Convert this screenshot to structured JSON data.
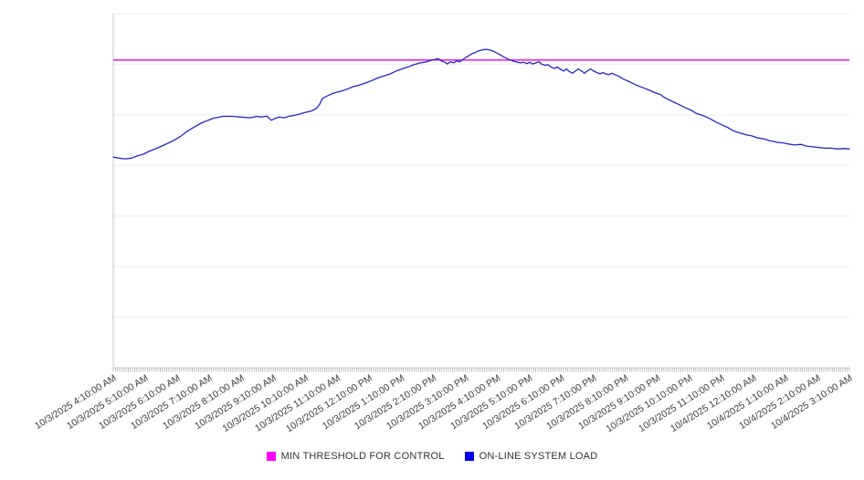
{
  "legend": {
    "items": [
      {
        "label": "MIN THRESHOLD FOR CONTROL",
        "color": "#FF00FF"
      },
      {
        "label": "ON-LINE SYSTEM LOAD",
        "color": "#0000EE"
      }
    ]
  },
  "chart_data": {
    "type": "line",
    "x_labels": [
      "10/3/2025 4:10:00 AM",
      "10/3/2025 5:10:00 AM",
      "10/3/2025 6:10:00 AM",
      "10/3/2025 7:10:00 AM",
      "10/3/2025 8:10:00 AM",
      "10/3/2025 9:10:00 AM",
      "10/3/2025 10:10:00 AM",
      "10/3/2025 11:10:00 AM",
      "10/3/2025 12:10:00 PM",
      "10/3/2025 1:10:00 PM",
      "10/3/2025 2:10:00 PM",
      "10/3/2025 3:10:00 PM",
      "10/3/2025 4:10:00 PM",
      "10/3/2025 5:10:00 PM",
      "10/3/2025 6:10:00 PM",
      "10/3/2025 7:10:00 PM",
      "10/3/2025 8:10:00 PM",
      "10/3/2025 9:10:00 PM",
      "10/3/2025 10:10:00 PM",
      "10/3/2025 11:10:00 PM",
      "10/4/2025 12:10:00 AM",
      "10/4/2025 1:10:00 AM",
      "10/4/2025 2:10:00 AM",
      "10/4/2025 3:10:00 AM"
    ],
    "x_range_hours": [
      0,
      23
    ],
    "ylim": [
      0,
      100
    ],
    "y_axis_labels_visible": false,
    "grid": true,
    "gridline_divisions": 7,
    "legend_position": "bottom",
    "series": [
      {
        "name": "MIN THRESHOLD FOR CONTROL",
        "type": "constant-threshold",
        "color": "#E400E0",
        "value": 86.9
      },
      {
        "name": "ON-LINE SYSTEM LOAD",
        "type": "line",
        "color": "#2525CC",
        "points": [
          [
            0,
            59.5
          ],
          [
            0.17,
            59.2
          ],
          [
            0.37,
            59.0
          ],
          [
            0.57,
            59.2
          ],
          [
            0.74,
            59.8
          ],
          [
            0.94,
            60.3
          ],
          [
            1.14,
            61.2
          ],
          [
            1.31,
            61.8
          ],
          [
            1.51,
            62.6
          ],
          [
            1.71,
            63.4
          ],
          [
            1.88,
            64.2
          ],
          [
            2.08,
            65.2
          ],
          [
            2.31,
            66.8
          ],
          [
            2.57,
            68.2
          ],
          [
            2.77,
            69.2
          ],
          [
            2.94,
            69.8
          ],
          [
            3.14,
            70.5
          ],
          [
            3.42,
            71.0
          ],
          [
            3.71,
            71.0
          ],
          [
            4.0,
            70.8
          ],
          [
            4.28,
            70.6
          ],
          [
            4.48,
            71.0
          ],
          [
            4.65,
            70.8
          ],
          [
            4.79,
            71.1
          ],
          [
            4.94,
            69.9
          ],
          [
            5.05,
            70.4
          ],
          [
            5.19,
            70.8
          ],
          [
            5.34,
            70.6
          ],
          [
            5.48,
            71.0
          ],
          [
            5.62,
            71.2
          ],
          [
            5.79,
            71.6
          ],
          [
            5.99,
            72.1
          ],
          [
            6.19,
            72.5
          ],
          [
            6.34,
            73.2
          ],
          [
            6.45,
            74.4
          ],
          [
            6.53,
            76.0
          ],
          [
            6.65,
            76.6
          ],
          [
            6.74,
            77.0
          ],
          [
            6.93,
            77.7
          ],
          [
            7.11,
            78.1
          ],
          [
            7.31,
            78.7
          ],
          [
            7.5,
            79.4
          ],
          [
            7.68,
            79.8
          ],
          [
            7.88,
            80.4
          ],
          [
            8.08,
            81.1
          ],
          [
            8.25,
            81.8
          ],
          [
            8.45,
            82.4
          ],
          [
            8.65,
            83.0
          ],
          [
            8.82,
            83.7
          ],
          [
            9.02,
            84.4
          ],
          [
            9.22,
            85.0
          ],
          [
            9.39,
            85.6
          ],
          [
            9.59,
            86.1
          ],
          [
            9.79,
            86.4
          ],
          [
            9.96,
            86.9
          ],
          [
            10.16,
            87.3
          ],
          [
            10.24,
            86.7
          ],
          [
            10.36,
            86.3
          ],
          [
            10.44,
            85.8
          ],
          [
            10.53,
            86.4
          ],
          [
            10.64,
            86.1
          ],
          [
            10.73,
            86.7
          ],
          [
            10.82,
            86.4
          ],
          [
            10.93,
            87.1
          ],
          [
            11.01,
            87.6
          ],
          [
            11.1,
            88.1
          ],
          [
            11.21,
            88.7
          ],
          [
            11.3,
            89.0
          ],
          [
            11.39,
            89.4
          ],
          [
            11.5,
            89.7
          ],
          [
            11.59,
            89.9
          ],
          [
            11.67,
            89.9
          ],
          [
            11.79,
            89.7
          ],
          [
            11.87,
            89.4
          ],
          [
            11.96,
            89.0
          ],
          [
            12.07,
            88.5
          ],
          [
            12.16,
            88.0
          ],
          [
            12.24,
            87.6
          ],
          [
            12.36,
            87.1
          ],
          [
            12.44,
            86.8
          ],
          [
            12.53,
            86.5
          ],
          [
            12.64,
            86.3
          ],
          [
            12.73,
            86.1
          ],
          [
            12.81,
            86.3
          ],
          [
            12.93,
            85.9
          ],
          [
            13.01,
            86.3
          ],
          [
            13.1,
            85.8
          ],
          [
            13.21,
            86.1
          ],
          [
            13.3,
            86.4
          ],
          [
            13.38,
            85.8
          ],
          [
            13.5,
            85.4
          ],
          [
            13.58,
            85.6
          ],
          [
            13.67,
            85.0
          ],
          [
            13.78,
            84.5
          ],
          [
            13.87,
            85.0
          ],
          [
            13.95,
            84.4
          ],
          [
            14.07,
            83.8
          ],
          [
            14.16,
            84.4
          ],
          [
            14.24,
            83.7
          ],
          [
            14.35,
            83.2
          ],
          [
            14.44,
            83.8
          ],
          [
            14.53,
            84.4
          ],
          [
            14.64,
            83.8
          ],
          [
            14.72,
            83.2
          ],
          [
            14.81,
            83.8
          ],
          [
            14.92,
            84.4
          ],
          [
            15.01,
            83.8
          ],
          [
            15.1,
            83.4
          ],
          [
            15.21,
            83.0
          ],
          [
            15.3,
            83.4
          ],
          [
            15.38,
            83.0
          ],
          [
            15.5,
            82.8
          ],
          [
            15.58,
            83.2
          ],
          [
            15.67,
            82.8
          ],
          [
            15.78,
            82.4
          ],
          [
            15.95,
            81.5
          ],
          [
            16.15,
            80.7
          ],
          [
            16.35,
            79.8
          ],
          [
            16.52,
            79.2
          ],
          [
            16.72,
            78.5
          ],
          [
            16.92,
            77.7
          ],
          [
            17.09,
            77.2
          ],
          [
            17.21,
            76.4
          ],
          [
            17.29,
            76.0
          ],
          [
            17.49,
            75.1
          ],
          [
            17.66,
            74.4
          ],
          [
            17.86,
            73.5
          ],
          [
            18.06,
            72.7
          ],
          [
            18.23,
            71.8
          ],
          [
            18.43,
            71.2
          ],
          [
            18.63,
            70.4
          ],
          [
            18.81,
            69.5
          ],
          [
            19.01,
            68.6
          ],
          [
            19.21,
            67.8
          ],
          [
            19.38,
            66.9
          ],
          [
            19.58,
            66.3
          ],
          [
            19.78,
            65.8
          ],
          [
            19.95,
            65.5
          ],
          [
            20.15,
            64.9
          ],
          [
            20.35,
            64.6
          ],
          [
            20.52,
            64.1
          ],
          [
            20.72,
            63.7
          ],
          [
            20.92,
            63.5
          ],
          [
            21.09,
            63.2
          ],
          [
            21.29,
            62.9
          ],
          [
            21.49,
            63.1
          ],
          [
            21.66,
            62.6
          ],
          [
            21.86,
            62.4
          ],
          [
            22.06,
            62.2
          ],
          [
            22.23,
            62.0
          ],
          [
            22.43,
            62.0
          ],
          [
            22.63,
            61.8
          ],
          [
            22.8,
            61.9
          ],
          [
            23.0,
            61.8
          ]
        ]
      }
    ]
  }
}
